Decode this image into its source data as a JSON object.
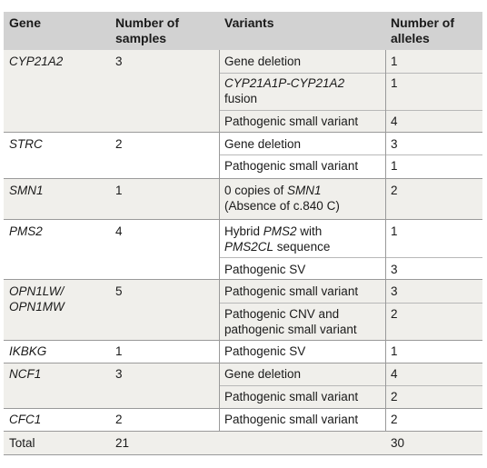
{
  "header": {
    "gene": "Gene",
    "samples": [
      "Number of",
      "samples"
    ],
    "variants": "Variants",
    "alleles": [
      "Number of",
      "alleles"
    ]
  },
  "rows": {
    "cyp21a2": {
      "gene": "CYP21A2",
      "samples": "3",
      "v1": "Gene deletion",
      "a1": "1",
      "v2a": "CYP21A1P-CYP21A2",
      "v2b": "fusion",
      "a2": "1",
      "v3": "Pathogenic small variant",
      "a3": "4"
    },
    "strc": {
      "gene": "STRC",
      "samples": "2",
      "v1": "Gene deletion",
      "a1": "3",
      "v2": "Pathogenic small variant",
      "a2": "1"
    },
    "smn1": {
      "gene": "SMN1",
      "samples": "1",
      "v1_pre": "0 copies of ",
      "v1_it": "SMN1",
      "v1b": "(Absence of c.840 C)",
      "a1": "2"
    },
    "pms2": {
      "gene": "PMS2",
      "samples": "4",
      "v1_pre": "Hybrid ",
      "v1_it": "PMS2",
      "v1_post": " with",
      "v1b_it": "PMS2CL",
      "v1b_post": " sequence",
      "a1": "1",
      "v2": "Pathogenic SV",
      "a2": "3"
    },
    "opn1": {
      "gene1": "OPN1LW/",
      "gene2": "OPN1MW",
      "samples": "5",
      "v1": "Pathogenic small variant",
      "a1": "3",
      "v2a": "Pathogenic CNV and",
      "v2b": "pathogenic small variant",
      "a2": "2"
    },
    "ikbkg": {
      "gene": "IKBKG",
      "samples": "1",
      "v1": "Pathogenic SV",
      "a1": "1"
    },
    "ncf1": {
      "gene": "NCF1",
      "samples": "3",
      "v1": "Gene deletion",
      "a1": "4",
      "v2": "Pathogenic small variant",
      "a2": "2"
    },
    "cfc1": {
      "gene": "CFC1",
      "samples": "2",
      "v1": "Pathogenic small variant",
      "a1": "2"
    },
    "total": {
      "label": "Total",
      "samples": "21",
      "alleles": "30"
    }
  }
}
